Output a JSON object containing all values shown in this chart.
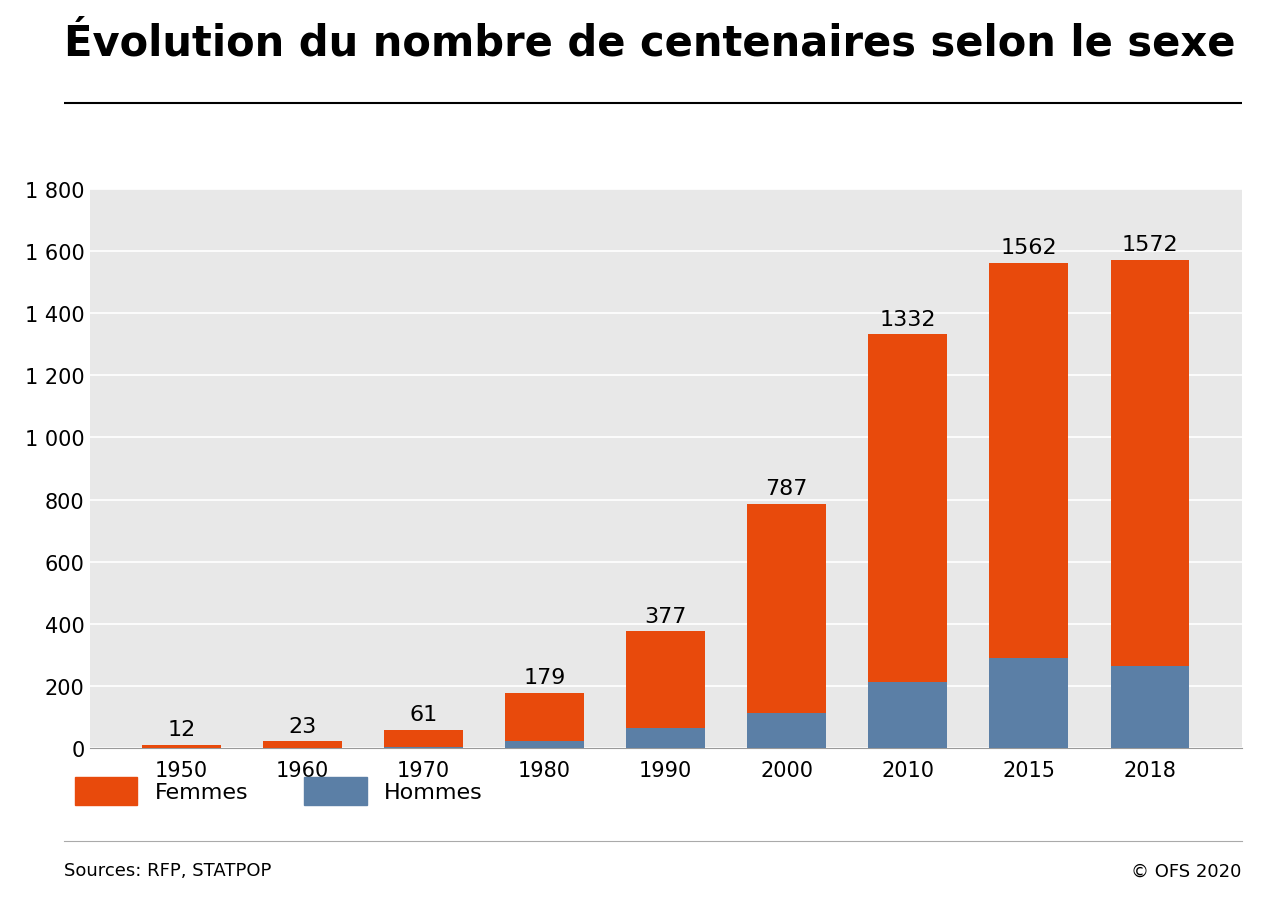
{
  "title": "Évolution du nombre de centenaires selon le sexe",
  "years": [
    "1950",
    "1960",
    "1970",
    "1980",
    "1990",
    "2000",
    "2010",
    "2015",
    "2018"
  ],
  "totals": [
    12,
    23,
    61,
    179,
    377,
    787,
    1332,
    1562,
    1572
  ],
  "hommes": [
    1,
    2,
    5,
    25,
    65,
    115,
    215,
    290,
    265
  ],
  "femmes_color": "#E84A0C",
  "hommes_color": "#5B7FA6",
  "bar_width": 0.65,
  "ylim": [
    0,
    1800
  ],
  "yticks": [
    0,
    200,
    400,
    600,
    800,
    1000,
    1200,
    1400,
    1600,
    1800
  ],
  "ytick_labels": [
    "0",
    "200",
    "400",
    "600",
    "800",
    "1 000",
    "1 200",
    "1 400",
    "1 600",
    "1 800"
  ],
  "legend_femmes": "Femmes",
  "legend_hommes": "Hommes",
  "source_left": "Sources: RFP, STATPOP",
  "source_right": "© OFS 2020",
  "bg_color": "#E8E8E8",
  "fig_bg_color": "#FFFFFF",
  "title_fontsize": 30,
  "tick_fontsize": 15,
  "annotation_fontsize": 16,
  "legend_fontsize": 16,
  "source_fontsize": 13
}
